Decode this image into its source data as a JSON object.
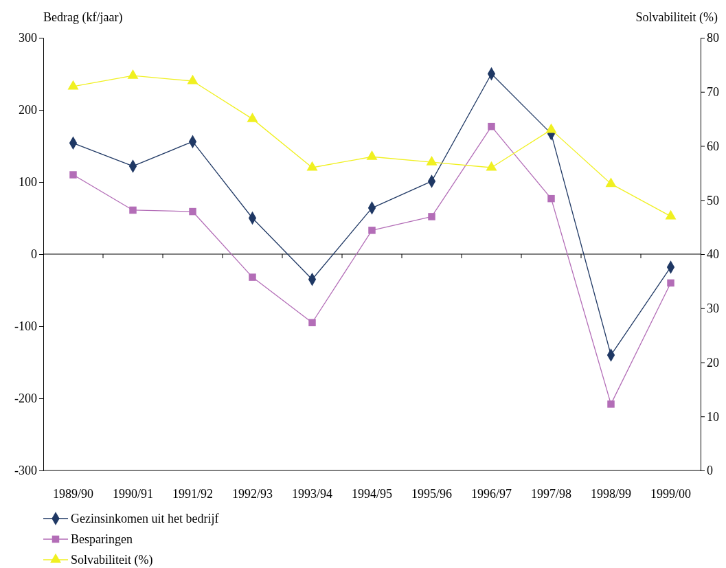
{
  "chart_data": {
    "type": "line",
    "ylabel": "Bedrag (kf/jaar)",
    "y2label": "Solvabiliteit (%)",
    "categories": [
      "1989/90",
      "1990/91",
      "1991/92",
      "1992/93",
      "1993/94",
      "1994/95",
      "1995/96",
      "1996/97",
      "1997/98",
      "1998/99",
      "1999/00"
    ],
    "ylim": [
      -300,
      300
    ],
    "yticks": [
      -300,
      -200,
      -100,
      0,
      100,
      200,
      300
    ],
    "y2lim": [
      0,
      80
    ],
    "y2ticks": [
      0,
      10,
      20,
      30,
      40,
      50,
      60,
      70,
      80
    ],
    "legend": "bottom left",
    "line_style": "solid",
    "series": [
      {
        "name": "Gezinsinkomen uit het bedrijf",
        "color": "#1f3864",
        "marker": "diamond",
        "values": [
          154,
          122,
          156,
          50,
          -35,
          64,
          101,
          250,
          167,
          -140,
          -18
        ]
      },
      {
        "name": "Besparingen",
        "color": "#b36db7",
        "marker": "square",
        "values": [
          110,
          61,
          59,
          -32,
          -95,
          33,
          52,
          177,
          77,
          -208,
          -40
        ]
      },
      {
        "name": "Solvabiliteit (%)",
        "color": "#f0f020",
        "marker": "triangle",
        "axis": "y2",
        "values": [
          71,
          73,
          72,
          65,
          56,
          58,
          57,
          56,
          63,
          53,
          47
        ]
      }
    ]
  }
}
